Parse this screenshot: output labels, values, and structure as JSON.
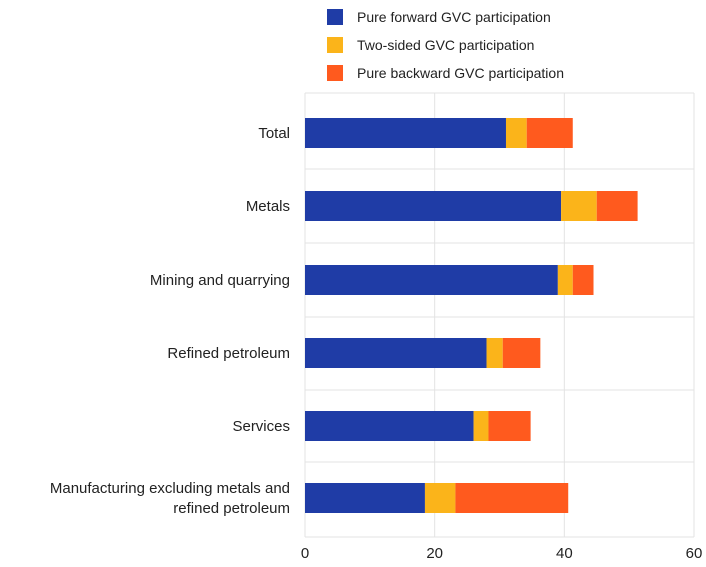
{
  "chart_data": {
    "type": "bar",
    "orientation": "horizontal",
    "stacked": true,
    "categories": [
      [
        "Total"
      ],
      [
        "Metals"
      ],
      [
        "Mining and quarrying"
      ],
      [
        "Refined petroleum"
      ],
      [
        "Services"
      ],
      [
        "Manufacturing excluding metals and",
        "refined petroleum"
      ]
    ],
    "series": [
      {
        "name": "Pure forward GVC participation",
        "color": "#1f3ca6",
        "values": [
          31,
          39.5,
          39,
          28,
          26,
          18.5
        ]
      },
      {
        "name": "Two-sided GVC participation",
        "color": "#fbb41a",
        "values": [
          3.2,
          5.5,
          2.3,
          2.5,
          2.3,
          4.7
        ]
      },
      {
        "name": "Pure backward GVC participation",
        "color": "#ff5a1e",
        "values": [
          7.1,
          6.3,
          3.2,
          5.8,
          6.5,
          17.4
        ]
      }
    ],
    "xlim": [
      0,
      60
    ],
    "xticks": [
      0,
      20,
      40,
      60
    ],
    "grid": "vertical",
    "legend_position": "top"
  }
}
